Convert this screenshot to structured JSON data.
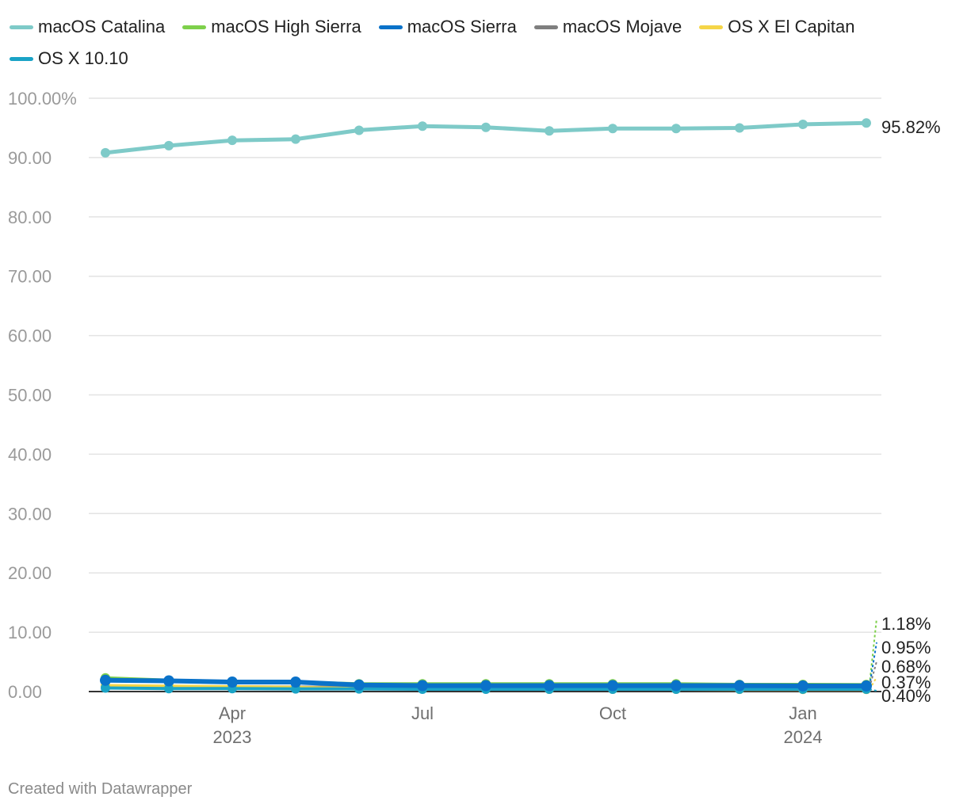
{
  "legend": {
    "items": [
      {
        "label": "macOS Catalina",
        "color": "#7ecac8"
      },
      {
        "label": "macOS High Sierra",
        "color": "#7ed04b"
      },
      {
        "label": "macOS Sierra",
        "color": "#0a72c9"
      },
      {
        "label": "macOS Mojave",
        "color": "#7f7f7f"
      },
      {
        "label": "OS X El Capitan",
        "color": "#f5d547"
      },
      {
        "label": "OS X 10.10",
        "color": "#1aa3c6"
      }
    ]
  },
  "credit": "Created with Datawrapper",
  "chart_data": {
    "type": "line",
    "title": "",
    "xlabel": "",
    "ylabel": "",
    "ylim": [
      0,
      100
    ],
    "y_ticks": [
      {
        "value": 100,
        "label": "100.00%"
      },
      {
        "value": 90,
        "label": "90.00"
      },
      {
        "value": 80,
        "label": "80.00"
      },
      {
        "value": 70,
        "label": "70.00"
      },
      {
        "value": 60,
        "label": "60.00"
      },
      {
        "value": 50,
        "label": "50.00"
      },
      {
        "value": 40,
        "label": "40.00"
      },
      {
        "value": 30,
        "label": "30.00"
      },
      {
        "value": 20,
        "label": "20.00"
      },
      {
        "value": 10,
        "label": "10.00"
      },
      {
        "value": 0,
        "label": "0.00"
      }
    ],
    "x": [
      "2023-02",
      "2023-03",
      "2023-04",
      "2023-05",
      "2023-06",
      "2023-07",
      "2023-08",
      "2023-09",
      "2023-10",
      "2023-11",
      "2023-12",
      "2024-01",
      "2024-02"
    ],
    "x_ticks": [
      {
        "x": "2023-04",
        "line1": "Apr",
        "line2": "2023"
      },
      {
        "x": "2023-07",
        "line1": "Jul",
        "line2": ""
      },
      {
        "x": "2023-10",
        "line1": "Oct",
        "line2": ""
      },
      {
        "x": "2024-01",
        "line1": "Jan",
        "line2": "2024"
      }
    ],
    "grid": true,
    "legend_position": "top",
    "series": [
      {
        "name": "macOS Catalina",
        "color": "#7ecac8",
        "values": [
          90.8,
          92.0,
          92.9,
          93.1,
          94.6,
          95.3,
          95.1,
          94.5,
          94.9,
          94.9,
          95.0,
          95.6,
          95.82
        ],
        "end_label": "95.82%"
      },
      {
        "name": "macOS High Sierra",
        "color": "#7ed04b",
        "values": [
          2.3,
          1.9,
          1.6,
          1.6,
          1.3,
          1.3,
          1.3,
          1.3,
          1.3,
          1.3,
          1.2,
          1.2,
          1.18
        ],
        "end_label": "1.18%"
      },
      {
        "name": "macOS Sierra",
        "color": "#0a72c9",
        "values": [
          1.9,
          1.8,
          1.6,
          1.6,
          1.1,
          1.0,
          1.0,
          1.0,
          1.0,
          1.0,
          1.0,
          0.95,
          0.95
        ],
        "end_label": "0.95%"
      },
      {
        "name": "macOS Mojave",
        "color": "#7f7f7f",
        "values": [
          0.9,
          0.8,
          0.8,
          0.75,
          0.7,
          0.7,
          0.7,
          0.7,
          0.7,
          0.7,
          0.7,
          0.68,
          0.68
        ],
        "end_label": "0.68%"
      },
      {
        "name": "OS X El Capitan",
        "color": "#f5d547",
        "values": [
          1.0,
          0.9,
          0.8,
          0.7,
          0.5,
          0.45,
          0.45,
          0.4,
          0.4,
          0.4,
          0.38,
          0.37,
          0.37
        ],
        "end_label": "0.37%"
      },
      {
        "name": "OS X 10.10",
        "color": "#1aa3c6",
        "values": [
          0.6,
          0.5,
          0.5,
          0.45,
          0.45,
          0.4,
          0.4,
          0.4,
          0.4,
          0.4,
          0.4,
          0.4,
          0.4
        ],
        "end_label": "0.40%"
      }
    ]
  }
}
